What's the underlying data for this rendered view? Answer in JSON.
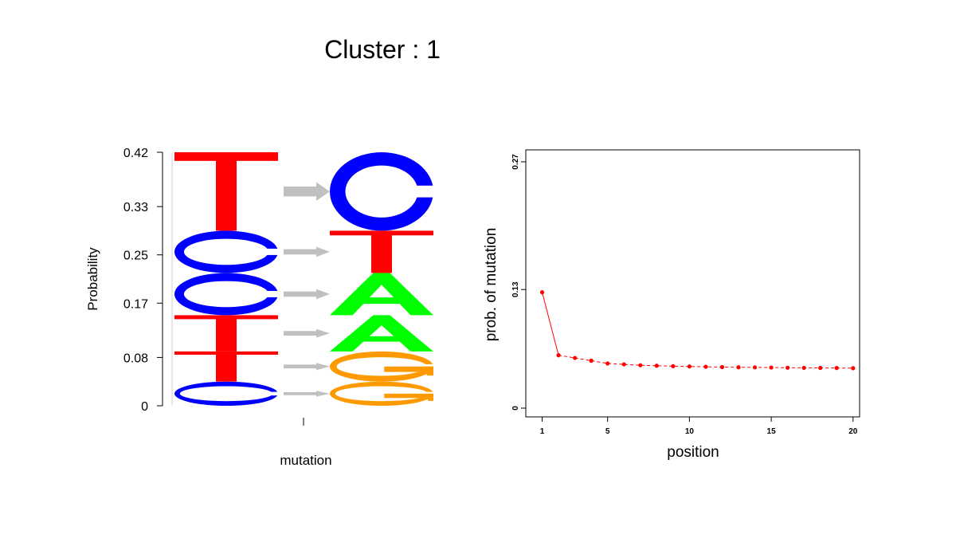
{
  "title": "Cluster : 1",
  "colors": {
    "A": "#00ff00",
    "C": "#0000ff",
    "G": "#ff9900",
    "T": "#ff0000",
    "arrow": "#c0c0c0",
    "line": "#ff0000"
  },
  "chart_data": [
    {
      "type": "logo",
      "ylabel": "Probability",
      "xlabel": "mutation",
      "yticks": [
        "0",
        "0.08",
        "0.17",
        "0.25",
        "0.33",
        "0.42"
      ],
      "ylim": [
        0,
        0.42
      ],
      "from_stack": [
        {
          "base": "C",
          "start": 0.0,
          "end": 0.04
        },
        {
          "base": "T",
          "start": 0.04,
          "end": 0.09
        },
        {
          "base": "T",
          "start": 0.09,
          "end": 0.15
        },
        {
          "base": "C",
          "start": 0.15,
          "end": 0.22
        },
        {
          "base": "C",
          "start": 0.22,
          "end": 0.29
        },
        {
          "base": "T",
          "start": 0.29,
          "end": 0.42
        }
      ],
      "to_stack": [
        {
          "base": "G",
          "start": 0.0,
          "end": 0.04
        },
        {
          "base": "G",
          "start": 0.04,
          "end": 0.09
        },
        {
          "base": "A",
          "start": 0.09,
          "end": 0.15
        },
        {
          "base": "A",
          "start": 0.15,
          "end": 0.22
        },
        {
          "base": "T",
          "start": 0.22,
          "end": 0.29
        },
        {
          "base": "C",
          "start": 0.29,
          "end": 0.42
        }
      ],
      "arrows": [
        {
          "y": 0.02,
          "weight": 0.04
        },
        {
          "y": 0.065,
          "weight": 0.05
        },
        {
          "y": 0.12,
          "weight": 0.06
        },
        {
          "y": 0.185,
          "weight": 0.07
        },
        {
          "y": 0.255,
          "weight": 0.07
        },
        {
          "y": 0.355,
          "weight": 0.13
        }
      ]
    },
    {
      "type": "line",
      "xlabel": "position",
      "ylabel": "prob. of mutation",
      "xticks": [
        "1",
        "5",
        "10",
        "15",
        "20"
      ],
      "xtick_values": [
        1,
        5,
        10,
        15,
        20
      ],
      "yticks": [
        "0",
        "0.13",
        "0.27"
      ],
      "ytick_values": [
        0,
        0.13,
        0.27
      ],
      "xlim": [
        0.0,
        20.4
      ],
      "ylim": [
        0,
        0.27
      ],
      "x": [
        1,
        2,
        3,
        4,
        5,
        6,
        7,
        8,
        9,
        10,
        11,
        12,
        13,
        14,
        15,
        16,
        17,
        18,
        19,
        20
      ],
      "y": [
        0.127,
        0.058,
        0.055,
        0.052,
        0.049,
        0.048,
        0.047,
        0.0465,
        0.046,
        0.0457,
        0.0453,
        0.045,
        0.0448,
        0.0447,
        0.0445,
        0.0443,
        0.0442,
        0.0441,
        0.044,
        0.0438
      ]
    }
  ]
}
